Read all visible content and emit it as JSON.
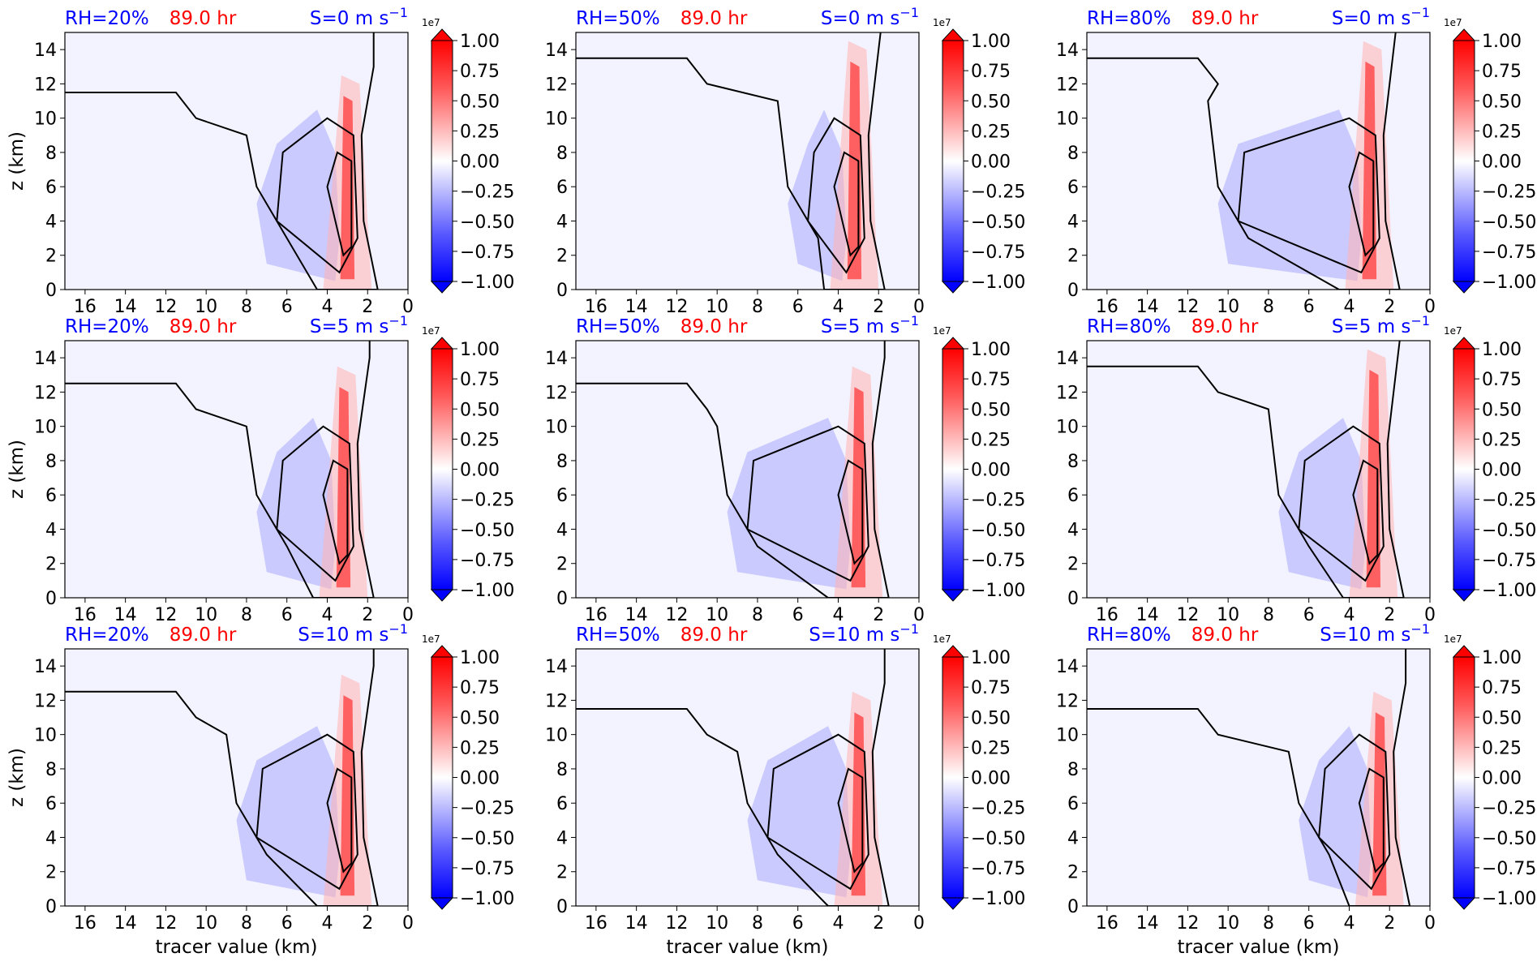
{
  "chart_data": {
    "type": "heatmap",
    "layout": "3x3 small multiples",
    "time_label": "89.0 hr",
    "row_labels": [
      "S=0 m s",
      "S=5 m s",
      "S=10 m s"
    ],
    "shear_unit_exponent": "−1",
    "col_labels": [
      "RH=20%",
      "RH=50%",
      "RH=80%"
    ],
    "xlabel": "tracer value (km)",
    "ylabel": "z (km)",
    "xlim": [
      17,
      0
    ],
    "ylim": [
      0,
      15
    ],
    "xticks": [
      "16",
      "14",
      "12",
      "10",
      "8",
      "6",
      "4",
      "2",
      "0"
    ],
    "yticks": [
      "0",
      "2",
      "4",
      "6",
      "8",
      "10",
      "12",
      "14"
    ],
    "colorbar": {
      "scale_label": "1e7",
      "ticks": [
        "1.00",
        "0.75",
        "0.50",
        "0.25",
        "0.00",
        "−0.25",
        "−0.50",
        "−0.75",
        "−1.00"
      ],
      "range": [
        -1.0,
        1.0
      ],
      "colormap": "bwr",
      "extend": "both"
    },
    "colors": {
      "rh_label": "#0000ff",
      "time_label": "#ff0000",
      "shear_label": "#0000ff",
      "contour": "#000000",
      "positive": "#ff0000",
      "negative": "#0000ff",
      "background": "#f3f3ff"
    },
    "panels": [
      {
        "rh": "RH=20%",
        "shear_value": "0",
        "plume_peak_tracer": 3.0,
        "plume_top": 12,
        "negative_extent_tracer": 7
      },
      {
        "rh": "RH=50%",
        "shear_value": "0",
        "plume_peak_tracer": 3.2,
        "plume_top": 14,
        "negative_extent_tracer": 6
      },
      {
        "rh": "RH=80%",
        "shear_value": "0",
        "plume_peak_tracer": 3.0,
        "plume_top": 14,
        "negative_extent_tracer": 10
      },
      {
        "rh": "RH=20%",
        "shear_value": "5",
        "plume_peak_tracer": 3.2,
        "plume_top": 13,
        "negative_extent_tracer": 7
      },
      {
        "rh": "RH=50%",
        "shear_value": "5",
        "plume_peak_tracer": 3.0,
        "plume_top": 13,
        "negative_extent_tracer": 9
      },
      {
        "rh": "RH=80%",
        "shear_value": "5",
        "plume_peak_tracer": 2.8,
        "plume_top": 14,
        "negative_extent_tracer": 7
      },
      {
        "rh": "RH=20%",
        "shear_value": "10",
        "plume_peak_tracer": 3.0,
        "plume_top": 13,
        "negative_extent_tracer": 8
      },
      {
        "rh": "RH=50%",
        "shear_value": "10",
        "plume_peak_tracer": 3.0,
        "plume_top": 12,
        "negative_extent_tracer": 8
      },
      {
        "rh": "RH=80%",
        "shear_value": "10",
        "plume_peak_tracer": 2.5,
        "plume_top": 12,
        "negative_extent_tracer": 6
      }
    ]
  }
}
